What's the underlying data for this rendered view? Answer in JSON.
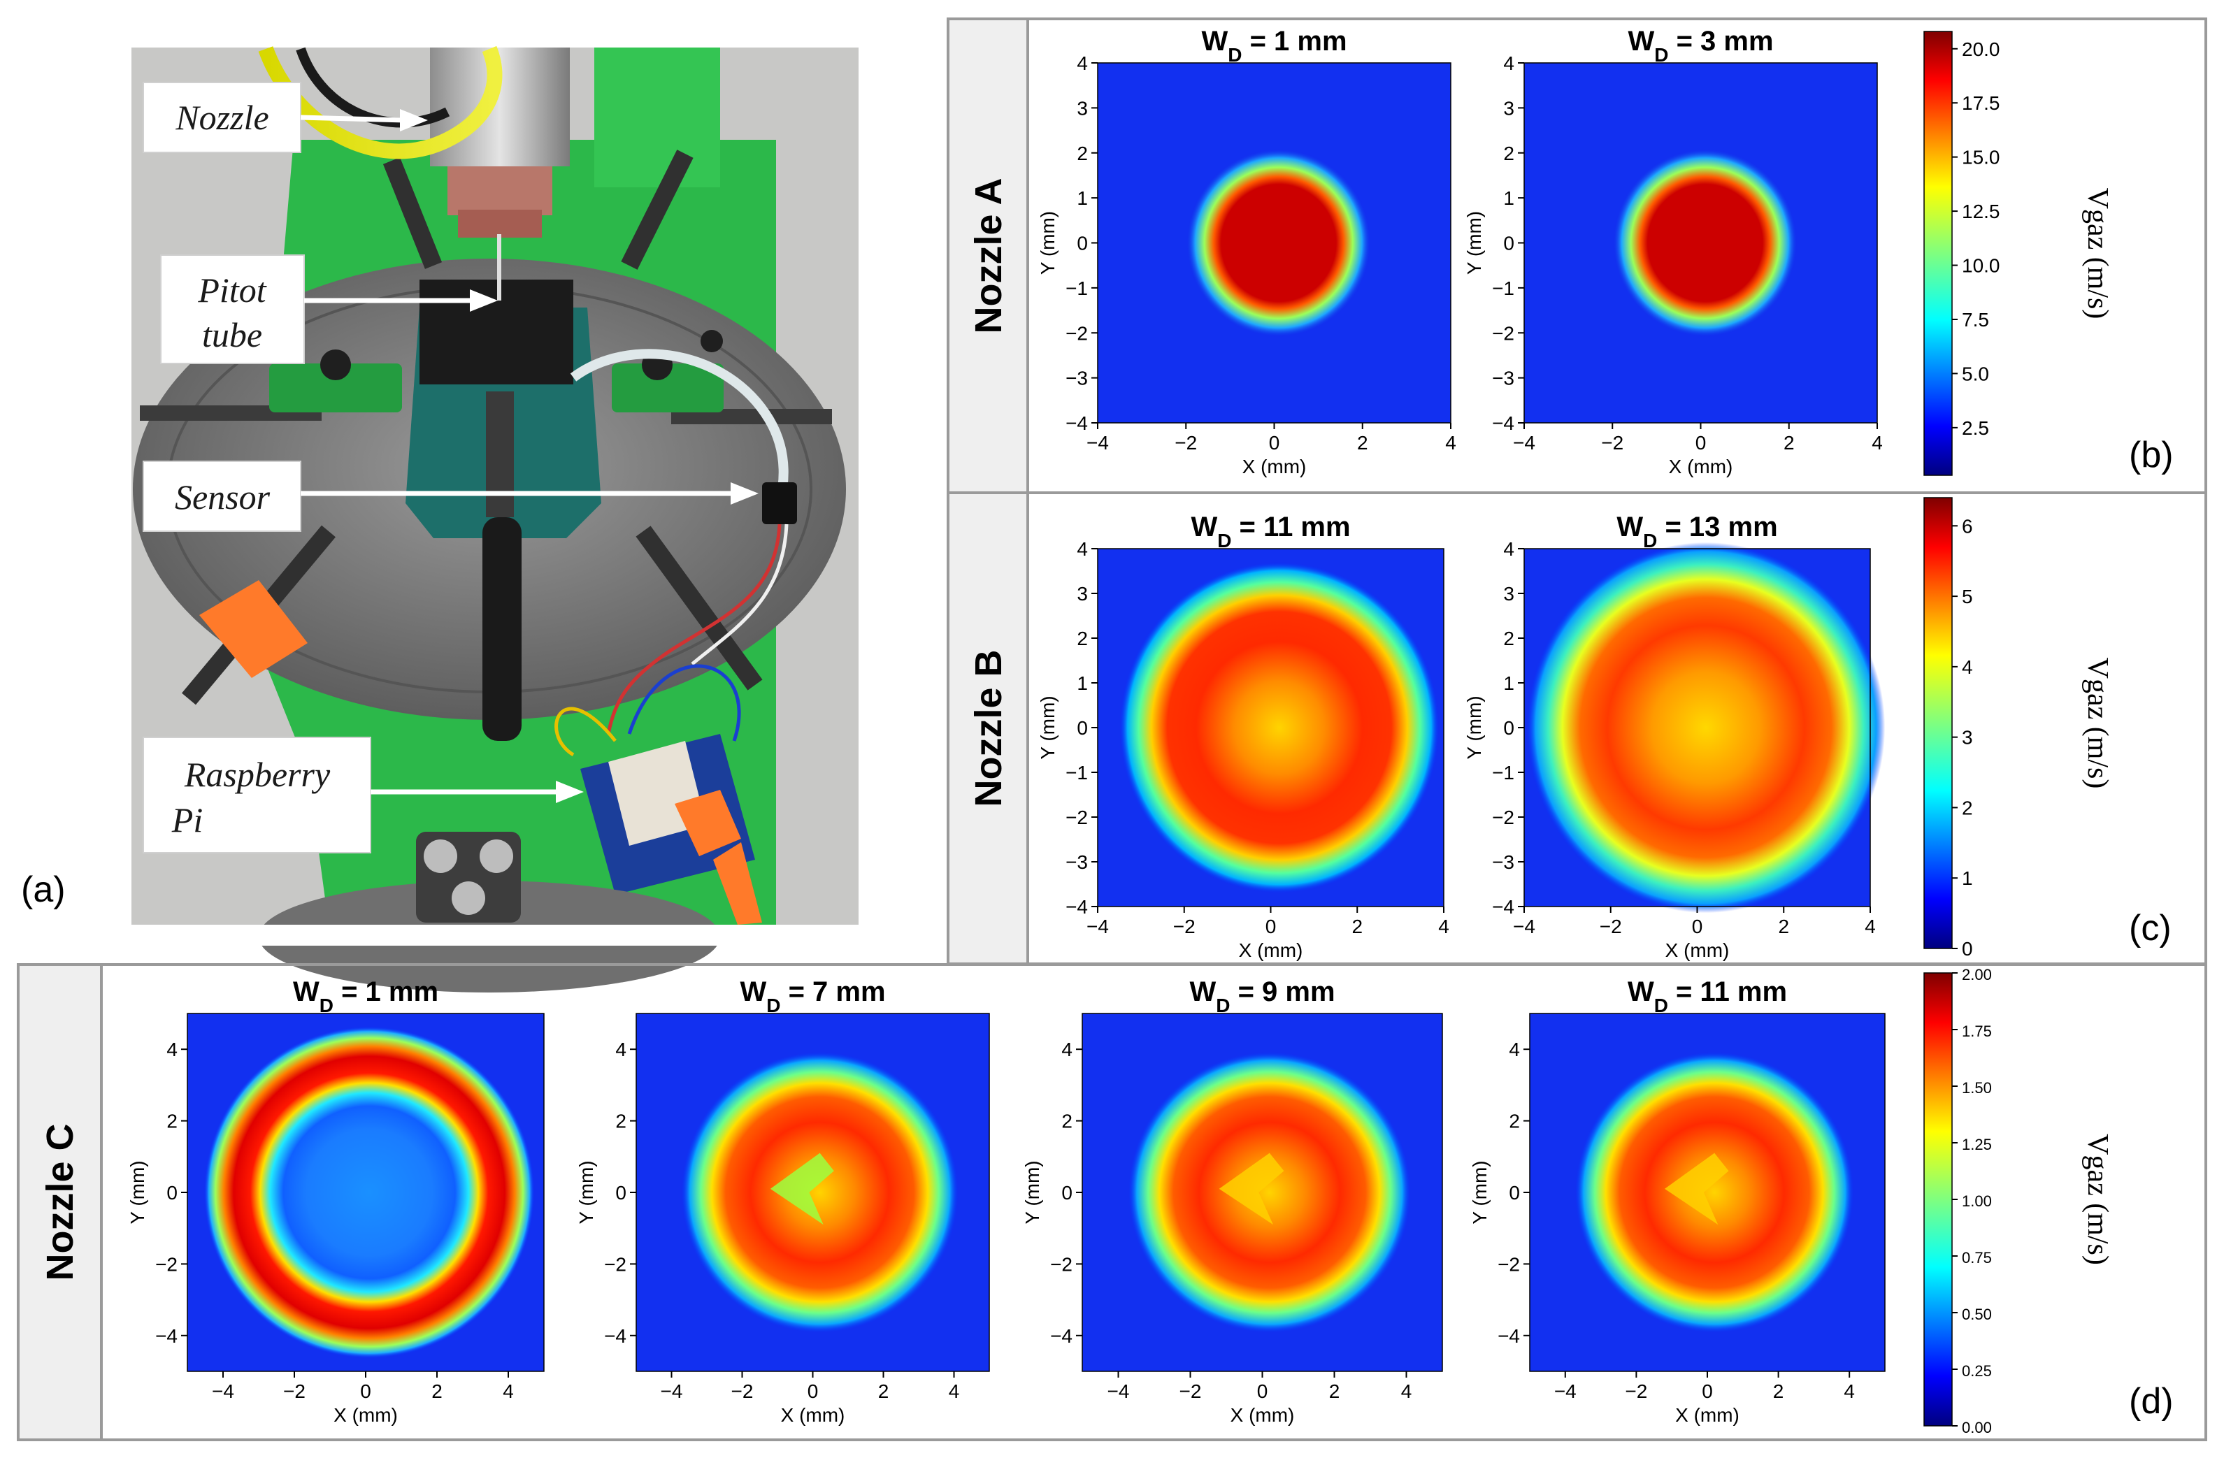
{
  "photo": {
    "panel_label": "(a)",
    "callouts": [
      "Nozzle",
      "Pitot tube",
      "Sensor",
      "Raspberry Pi"
    ]
  },
  "rows": [
    {
      "label": "Nozzle A",
      "panel_label": "(b)"
    },
    {
      "label": "Nozzle B",
      "panel_label": "(c)"
    },
    {
      "label": "Nozzle C",
      "panel_label": "(d)"
    }
  ],
  "colorbar_title": "Vgaz (m/s)",
  "colors": {
    "jet": [
      "#00007f",
      "#0000ff",
      "#007fff",
      "#00ffff",
      "#7fff7f",
      "#ffff00",
      "#ff7f00",
      "#ff0000",
      "#7f0000"
    ],
    "frame": "#9a9a9a",
    "row_label_bg": "#efefef",
    "machine_green": "#2cb84a",
    "chuck_gray": "#7b7b7b"
  },
  "chart_data": [
    {
      "type": "heatmap",
      "group": "Nozzle A",
      "subplot_titles": [
        "WD = 1 mm",
        "WD = 3 mm"
      ],
      "title_main": "W",
      "title_sub": "D",
      "title_tail": " = ",
      "panels": [
        {
          "wd": "1",
          "unit": "mm",
          "shape": "disk",
          "core_value": 20.5,
          "core_radius_mm": 1.35,
          "edge_radius_mm": 2.0
        },
        {
          "wd": "3",
          "unit": "mm",
          "shape": "disk",
          "core_value": 20.5,
          "core_radius_mm": 1.35,
          "edge_radius_mm": 2.0
        }
      ],
      "xlabel": "X (mm)",
      "ylabel": "Y (mm)",
      "xlim": [
        -4,
        4
      ],
      "ylim": [
        -4,
        4
      ],
      "xticks": [
        "−4",
        "−2",
        "0",
        "2",
        "4"
      ],
      "yticks": [
        "4",
        "3",
        "2",
        "1",
        "0",
        "−1",
        "−2",
        "−3",
        "−4"
      ],
      "colorbar": {
        "min": 0.3,
        "max": 20.8,
        "ticks": [
          "2.5",
          "5.0",
          "7.5",
          "10.0",
          "12.5",
          "15.0",
          "17.5",
          "20.0"
        ],
        "tick_values": [
          2.5,
          5.0,
          7.5,
          10.0,
          12.5,
          15.0,
          17.5,
          20.0
        ]
      }
    },
    {
      "type": "heatmap",
      "group": "Nozzle B",
      "subplot_titles": [
        "WD = 11 mm",
        "WD = 13 mm"
      ],
      "title_main": "W",
      "title_sub": "D",
      "title_tail": " = ",
      "panels": [
        {
          "wd": "11",
          "unit": "mm",
          "shape": "broad",
          "peak_value": 5.4,
          "center_value": 4.4,
          "edge_radius_mm": 3.3
        },
        {
          "wd": "13",
          "unit": "mm",
          "shape": "broad",
          "peak_value": 5.0,
          "center_value": 4.2,
          "edge_radius_mm": 3.7
        }
      ],
      "xlabel": "X (mm)",
      "ylabel": "Y (mm)",
      "xlim": [
        -4,
        4
      ],
      "ylim": [
        -4,
        4
      ],
      "xticks": [
        "−4",
        "−2",
        "0",
        "2",
        "4"
      ],
      "yticks": [
        "4",
        "3",
        "2",
        "1",
        "0",
        "−1",
        "−2",
        "−3",
        "−4"
      ],
      "colorbar": {
        "min": 0,
        "max": 6.4,
        "ticks": [
          "0",
          "1",
          "2",
          "3",
          "4",
          "5",
          "6"
        ],
        "tick_values": [
          0,
          1,
          2,
          3,
          4,
          5,
          6
        ]
      }
    },
    {
      "type": "heatmap",
      "group": "Nozzle C",
      "subplot_titles": [
        "WD = 1 mm",
        "WD = 7 mm",
        "WD = 9 mm",
        "WD = 11 mm"
      ],
      "title_main": "W",
      "title_sub": "D",
      "title_tail": " = ",
      "panels": [
        {
          "wd": "1",
          "unit": "mm",
          "shape": "ring",
          "ring_value": 1.95,
          "center_value": 0.5,
          "ring_radius_mm": 3.8
        },
        {
          "wd": "7",
          "unit": "mm",
          "shape": "broad",
          "peak_value": 1.7,
          "center_value": 1.05,
          "edge_radius_mm": 3.5
        },
        {
          "wd": "9",
          "unit": "mm",
          "shape": "broad",
          "peak_value": 1.65,
          "center_value": 1.3,
          "edge_radius_mm": 3.5
        },
        {
          "wd": "11",
          "unit": "mm",
          "shape": "broad",
          "peak_value": 1.6,
          "center_value": 1.4,
          "edge_radius_mm": 3.5
        }
      ],
      "xlabel": "X (mm)",
      "ylabel": "Y (mm)",
      "xlim": [
        -5,
        5
      ],
      "ylim": [
        -5,
        5
      ],
      "xticks": [
        "−4",
        "−2",
        "0",
        "2",
        "4"
      ],
      "yticks": [
        "4",
        "2",
        "0",
        "−2",
        "−4"
      ],
      "colorbar": {
        "min": 0,
        "max": 2.0,
        "ticks": [
          "0.00",
          "0.25",
          "0.50",
          "0.75",
          "1.00",
          "1.25",
          "1.50",
          "1.75",
          "2.00"
        ],
        "tick_values": [
          0,
          0.25,
          0.5,
          0.75,
          1.0,
          1.25,
          1.5,
          1.75,
          2.0
        ]
      }
    }
  ]
}
